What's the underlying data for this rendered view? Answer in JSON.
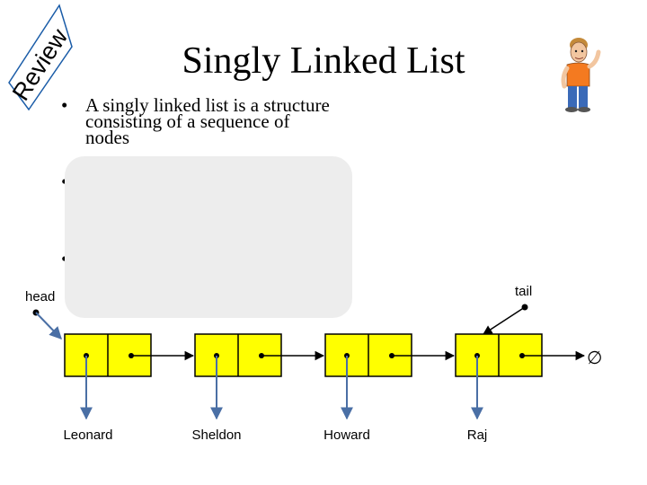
{
  "banner": {
    "text": "Review"
  },
  "title": "Singly Linked List",
  "bullets": [
    "A singly linked list is a structure consisting of a sequence of nodes",
    "",
    ""
  ],
  "pointers": {
    "head": "head",
    "tail": "tail",
    "null_symbol": "∅"
  },
  "list": {
    "nodes": [
      "Leonard",
      "Sheldon",
      "Howard",
      "Raj"
    ]
  },
  "colors": {
    "node_fill": "#ffff00",
    "arrow": "#4a6fa5",
    "overlay": "#ededed",
    "banner_border": "#1a5ca8"
  }
}
